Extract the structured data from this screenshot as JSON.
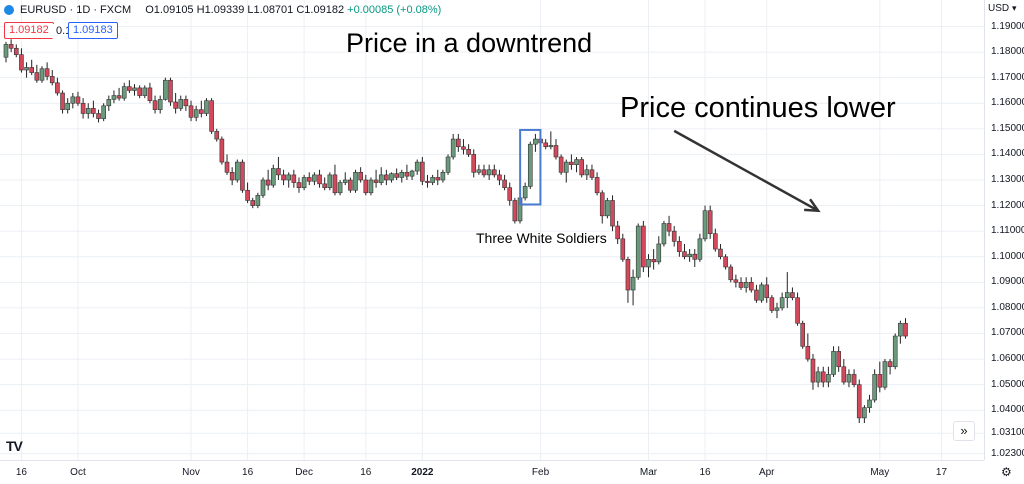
{
  "header": {
    "symbol": "EURUSD · 1D · FXCM",
    "open": "O1.09105",
    "high": "H1.09339",
    "low": "L1.08701",
    "close": "C1.09182",
    "change": "+0.00085 (+0.08%)",
    "sell_price": "1.09182",
    "spread": "0.1",
    "buy_price": "1.09183"
  },
  "currency": "USD",
  "annotations": {
    "title": "Price in a downtrend",
    "continuation": "Price continues lower",
    "pattern": "Three White Soldiers"
  },
  "colors": {
    "up": "#6a9a7c",
    "down": "#d1495b",
    "grid": "#eceff3",
    "highlight": "#4a7bd0",
    "arrow": "#333333"
  },
  "logo": "TV",
  "scroll_icon": "»",
  "settings_icon": "⚙",
  "chart_data": {
    "type": "candlestick",
    "title": "",
    "ylim": [
      1.0225,
      1.1945
    ],
    "ticks_y": [
      "1.19000",
      "1.18000",
      "1.17000",
      "1.16000",
      "1.15000",
      "1.14000",
      "1.13000",
      "1.12000",
      "1.11000",
      "1.10000",
      "1.09000",
      "1.08000",
      "1.07000",
      "1.06000",
      "1.05000",
      "1.04000",
      "1.03100",
      "1.02300"
    ],
    "ticks_y_values": [
      1.19,
      1.18,
      1.17,
      1.16,
      1.15,
      1.14,
      1.13,
      1.12,
      1.11,
      1.1,
      1.09,
      1.08,
      1.07,
      1.06,
      1.05,
      1.04,
      1.031,
      1.023
    ],
    "ticks_x": [
      {
        "label": "16",
        "bar": 3,
        "bold": false
      },
      {
        "label": "Oct",
        "bar": 14,
        "bold": false
      },
      {
        "label": "Nov",
        "bar": 36,
        "bold": false
      },
      {
        "label": "16",
        "bar": 47,
        "bold": false
      },
      {
        "label": "Dec",
        "bar": 58,
        "bold": false
      },
      {
        "label": "16",
        "bar": 70,
        "bold": false
      },
      {
        "label": "2022",
        "bar": 81,
        "bold": true
      },
      {
        "label": "Feb",
        "bar": 104,
        "bold": false
      },
      {
        "label": "Mar",
        "bar": 125,
        "bold": false
      },
      {
        "label": "16",
        "bar": 136,
        "bold": false
      },
      {
        "label": "Apr",
        "bar": 148,
        "bold": false
      },
      {
        "label": "May",
        "bar": 170,
        "bold": false
      },
      {
        "label": "17",
        "bar": 182,
        "bold": false
      }
    ],
    "highlight_bars": [
      101,
      103
    ],
    "arrow": {
      "from": {
        "bar": 130,
        "price": 1.1492
      },
      "to": {
        "bar": 158,
        "price": 1.118
      }
    },
    "candles": [
      [
        1.178,
        1.184,
        1.176,
        1.183
      ],
      [
        1.183,
        1.185,
        1.18,
        1.1815
      ],
      [
        1.1815,
        1.183,
        1.178,
        1.179
      ],
      [
        1.179,
        1.1815,
        1.172,
        1.173
      ],
      [
        1.173,
        1.176,
        1.17,
        1.174
      ],
      [
        1.174,
        1.177,
        1.171,
        1.172
      ],
      [
        1.172,
        1.175,
        1.168,
        1.169
      ],
      [
        1.169,
        1.1745,
        1.168,
        1.1735
      ],
      [
        1.1735,
        1.176,
        1.169,
        1.1705
      ],
      [
        1.1705,
        1.173,
        1.167,
        1.168
      ],
      [
        1.168,
        1.17,
        1.163,
        1.164
      ],
      [
        1.164,
        1.165,
        1.156,
        1.1575
      ],
      [
        1.1575,
        1.162,
        1.156,
        1.16
      ],
      [
        1.16,
        1.164,
        1.158,
        1.1625
      ],
      [
        1.1625,
        1.1645,
        1.159,
        1.16
      ],
      [
        1.16,
        1.162,
        1.154,
        1.156
      ],
      [
        1.156,
        1.16,
        1.154,
        1.158
      ],
      [
        1.158,
        1.161,
        1.1545,
        1.156
      ],
      [
        1.156,
        1.1575,
        1.1525,
        1.154
      ],
      [
        1.154,
        1.16,
        1.153,
        1.159
      ],
      [
        1.159,
        1.163,
        1.157,
        1.1615
      ],
      [
        1.1615,
        1.165,
        1.16,
        1.163
      ],
      [
        1.163,
        1.166,
        1.161,
        1.162
      ],
      [
        1.162,
        1.168,
        1.161,
        1.1665
      ],
      [
        1.1665,
        1.169,
        1.164,
        1.165
      ],
      [
        1.165,
        1.1675,
        1.163,
        1.166
      ],
      [
        1.166,
        1.167,
        1.162,
        1.163
      ],
      [
        1.163,
        1.167,
        1.162,
        1.166
      ],
      [
        1.166,
        1.168,
        1.16,
        1.161
      ],
      [
        1.161,
        1.163,
        1.156,
        1.1575
      ],
      [
        1.1575,
        1.163,
        1.156,
        1.1615
      ],
      [
        1.1615,
        1.17,
        1.161,
        1.169
      ],
      [
        1.169,
        1.17,
        1.159,
        1.1605
      ],
      [
        1.1605,
        1.164,
        1.156,
        1.158
      ],
      [
        1.158,
        1.163,
        1.157,
        1.1615
      ],
      [
        1.1615,
        1.163,
        1.157,
        1.159
      ],
      [
        1.159,
        1.161,
        1.153,
        1.1545
      ],
      [
        1.1545,
        1.159,
        1.153,
        1.1575
      ],
      [
        1.1575,
        1.161,
        1.1545,
        1.156
      ],
      [
        1.156,
        1.162,
        1.155,
        1.161
      ],
      [
        1.161,
        1.162,
        1.148,
        1.149
      ],
      [
        1.149,
        1.15,
        1.145,
        1.146
      ],
      [
        1.146,
        1.147,
        1.136,
        1.137
      ],
      [
        1.137,
        1.14,
        1.132,
        1.133
      ],
      [
        1.133,
        1.135,
        1.128,
        1.13
      ],
      [
        1.13,
        1.138,
        1.129,
        1.137
      ],
      [
        1.137,
        1.138,
        1.125,
        1.126
      ],
      [
        1.126,
        1.129,
        1.121,
        1.122
      ],
      [
        1.122,
        1.123,
        1.119,
        1.12
      ],
      [
        1.12,
        1.125,
        1.119,
        1.124
      ],
      [
        1.124,
        1.131,
        1.123,
        1.13
      ],
      [
        1.13,
        1.134,
        1.126,
        1.128
      ],
      [
        1.128,
        1.136,
        1.127,
        1.1345
      ],
      [
        1.1345,
        1.139,
        1.13,
        1.132
      ],
      [
        1.132,
        1.134,
        1.128,
        1.13
      ],
      [
        1.13,
        1.133,
        1.127,
        1.132
      ],
      [
        1.132,
        1.134,
        1.127,
        1.129
      ],
      [
        1.129,
        1.131,
        1.125,
        1.127
      ],
      [
        1.127,
        1.132,
        1.126,
        1.131
      ],
      [
        1.131,
        1.133,
        1.128,
        1.1295
      ],
      [
        1.1295,
        1.133,
        1.128,
        1.132
      ],
      [
        1.132,
        1.134,
        1.127,
        1.1285
      ],
      [
        1.1285,
        1.131,
        1.126,
        1.127
      ],
      [
        1.127,
        1.133,
        1.126,
        1.132
      ],
      [
        1.132,
        1.136,
        1.124,
        1.125
      ],
      [
        1.125,
        1.13,
        1.124,
        1.129
      ],
      [
        1.129,
        1.133,
        1.128,
        1.13
      ],
      [
        1.13,
        1.131,
        1.125,
        1.126
      ],
      [
        1.126,
        1.134,
        1.125,
        1.133
      ],
      [
        1.133,
        1.135,
        1.129,
        1.13
      ],
      [
        1.13,
        1.132,
        1.124,
        1.125
      ],
      [
        1.125,
        1.131,
        1.124,
        1.13
      ],
      [
        1.13,
        1.134,
        1.127,
        1.129
      ],
      [
        1.129,
        1.135,
        1.128,
        1.132
      ],
      [
        1.132,
        1.134,
        1.128,
        1.13
      ],
      [
        1.13,
        1.133,
        1.129,
        1.1325
      ],
      [
        1.1325,
        1.1345,
        1.13,
        1.131
      ],
      [
        1.131,
        1.134,
        1.129,
        1.133
      ],
      [
        1.133,
        1.136,
        1.13,
        1.1315
      ],
      [
        1.1315,
        1.134,
        1.13,
        1.1335
      ],
      [
        1.1335,
        1.138,
        1.132,
        1.137
      ],
      [
        1.137,
        1.139,
        1.128,
        1.1295
      ],
      [
        1.1295,
        1.132,
        1.127,
        1.129
      ],
      [
        1.129,
        1.132,
        1.128,
        1.131
      ],
      [
        1.131,
        1.134,
        1.128,
        1.13
      ],
      [
        1.13,
        1.134,
        1.129,
        1.133
      ],
      [
        1.133,
        1.14,
        1.132,
        1.139
      ],
      [
        1.139,
        1.148,
        1.138,
        1.146
      ],
      [
        1.146,
        1.148,
        1.141,
        1.143
      ],
      [
        1.143,
        1.146,
        1.14,
        1.142
      ],
      [
        1.142,
        1.144,
        1.139,
        1.14
      ],
      [
        1.14,
        1.142,
        1.131,
        1.133
      ],
      [
        1.133,
        1.136,
        1.132,
        1.134
      ],
      [
        1.134,
        1.136,
        1.131,
        1.132
      ],
      [
        1.132,
        1.136,
        1.13,
        1.134
      ],
      [
        1.134,
        1.136,
        1.131,
        1.132
      ],
      [
        1.132,
        1.134,
        1.128,
        1.13
      ],
      [
        1.13,
        1.132,
        1.126,
        1.127
      ],
      [
        1.127,
        1.129,
        1.12,
        1.122
      ],
      [
        1.122,
        1.123,
        1.113,
        1.114
      ],
      [
        1.114,
        1.125,
        1.113,
        1.123
      ],
      [
        1.123,
        1.129,
        1.122,
        1.1275
      ],
      [
        1.1275,
        1.145,
        1.1265,
        1.144
      ],
      [
        1.144,
        1.148,
        1.141,
        1.146
      ],
      [
        1.146,
        1.147,
        1.143,
        1.1445
      ],
      [
        1.1445,
        1.146,
        1.142,
        1.143
      ],
      [
        1.143,
        1.149,
        1.142,
        1.1435
      ],
      [
        1.1435,
        1.146,
        1.138,
        1.139
      ],
      [
        1.139,
        1.14,
        1.132,
        1.133
      ],
      [
        1.133,
        1.138,
        1.129,
        1.137
      ],
      [
        1.137,
        1.14,
        1.134,
        1.136
      ],
      [
        1.136,
        1.139,
        1.133,
        1.138
      ],
      [
        1.138,
        1.139,
        1.131,
        1.132
      ],
      [
        1.132,
        1.136,
        1.13,
        1.134
      ],
      [
        1.134,
        1.136,
        1.13,
        1.131
      ],
      [
        1.131,
        1.133,
        1.124,
        1.125
      ],
      [
        1.125,
        1.126,
        1.113,
        1.116
      ],
      [
        1.116,
        1.123,
        1.115,
        1.122
      ],
      [
        1.122,
        1.124,
        1.11,
        1.112
      ],
      [
        1.112,
        1.114,
        1.105,
        1.107
      ],
      [
        1.107,
        1.109,
        1.098,
        1.099
      ],
      [
        1.099,
        1.1,
        1.082,
        1.087
      ],
      [
        1.087,
        1.095,
        1.081,
        1.092
      ],
      [
        1.092,
        1.113,
        1.091,
        1.112
      ],
      [
        1.112,
        1.114,
        1.094,
        1.096
      ],
      [
        1.096,
        1.101,
        1.092,
        1.099
      ],
      [
        1.099,
        1.103,
        1.095,
        1.098
      ],
      [
        1.098,
        1.108,
        1.097,
        1.105
      ],
      [
        1.105,
        1.114,
        1.104,
        1.113
      ],
      [
        1.113,
        1.116,
        1.108,
        1.11
      ],
      [
        1.11,
        1.112,
        1.104,
        1.106
      ],
      [
        1.106,
        1.108,
        1.1,
        1.102
      ],
      [
        1.102,
        1.105,
        1.099,
        1.1
      ],
      [
        1.1,
        1.103,
        1.098,
        1.101
      ],
      [
        1.101,
        1.103,
        1.096,
        1.099
      ],
      [
        1.099,
        1.109,
        1.098,
        1.107
      ],
      [
        1.107,
        1.12,
        1.106,
        1.118
      ],
      [
        1.118,
        1.12,
        1.107,
        1.109
      ],
      [
        1.109,
        1.111,
        1.102,
        1.103
      ],
      [
        1.103,
        1.105,
        1.099,
        1.1
      ],
      [
        1.1,
        1.101,
        1.095,
        1.096
      ],
      [
        1.096,
        1.097,
        1.09,
        1.091
      ],
      [
        1.091,
        1.093,
        1.088,
        1.09
      ],
      [
        1.09,
        1.092,
        1.087,
        1.088
      ],
      [
        1.088,
        1.092,
        1.086,
        1.09
      ],
      [
        1.09,
        1.092,
        1.086,
        1.087
      ],
      [
        1.087,
        1.089,
        1.082,
        1.083
      ],
      [
        1.083,
        1.09,
        1.082,
        1.089
      ],
      [
        1.089,
        1.092,
        1.082,
        1.084
      ],
      [
        1.084,
        1.085,
        1.078,
        1.079
      ],
      [
        1.079,
        1.082,
        1.076,
        1.08
      ],
      [
        1.08,
        1.086,
        1.079,
        1.084
      ],
      [
        1.084,
        1.094,
        1.08,
        1.086
      ],
      [
        1.086,
        1.088,
        1.083,
        1.084
      ],
      [
        1.084,
        1.086,
        1.073,
        1.074
      ],
      [
        1.074,
        1.075,
        1.064,
        1.065
      ],
      [
        1.065,
        1.07,
        1.059,
        1.06
      ],
      [
        1.06,
        1.062,
        1.048,
        1.051
      ],
      [
        1.051,
        1.057,
        1.049,
        1.055
      ],
      [
        1.055,
        1.057,
        1.049,
        1.051
      ],
      [
        1.051,
        1.057,
        1.049,
        1.054
      ],
      [
        1.054,
        1.065,
        1.053,
        1.063
      ],
      [
        1.063,
        1.065,
        1.055,
        1.057
      ],
      [
        1.057,
        1.06,
        1.05,
        1.051
      ],
      [
        1.051,
        1.056,
        1.049,
        1.054
      ],
      [
        1.054,
        1.056,
        1.049,
        1.05
      ],
      [
        1.05,
        1.052,
        1.035,
        1.037
      ],
      [
        1.037,
        1.042,
        1.035,
        1.041
      ],
      [
        1.041,
        1.046,
        1.039,
        1.044
      ],
      [
        1.044,
        1.056,
        1.043,
        1.054
      ],
      [
        1.054,
        1.059,
        1.047,
        1.049
      ],
      [
        1.049,
        1.06,
        1.048,
        1.059
      ],
      [
        1.059,
        1.06,
        1.054,
        1.057
      ],
      [
        1.057,
        1.07,
        1.056,
        1.069
      ],
      [
        1.069,
        1.075,
        1.066,
        1.074
      ],
      [
        1.074,
        1.076,
        1.068,
        1.069
      ]
    ]
  }
}
